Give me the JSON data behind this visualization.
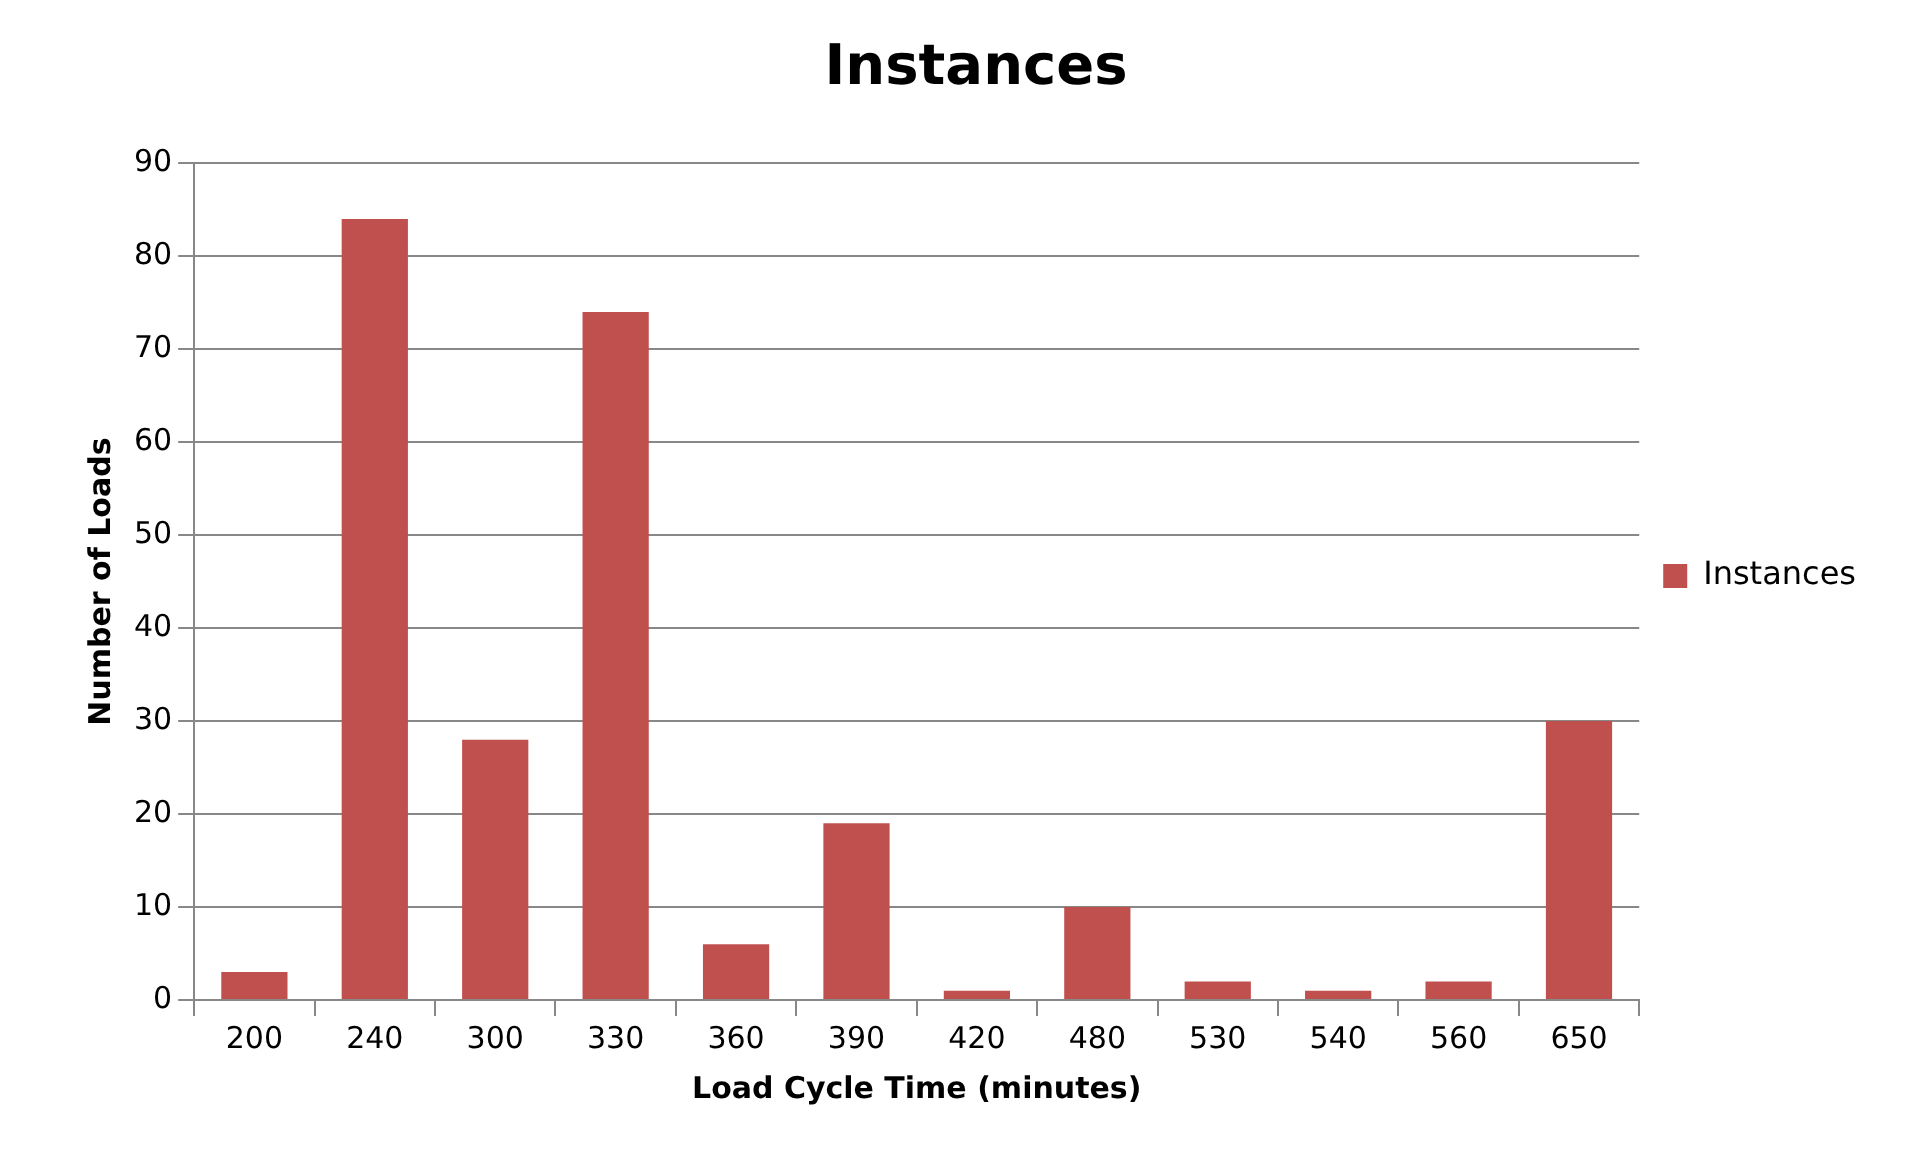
{
  "chart_data": {
    "type": "bar",
    "title": "Instances",
    "xlabel": "Load Cycle Time (minutes)",
    "ylabel": "Number of Loads",
    "categories": [
      "200",
      "240",
      "300",
      "330",
      "360",
      "390",
      "420",
      "480",
      "530",
      "540",
      "560",
      "650"
    ],
    "series": [
      {
        "name": "Instances",
        "color": "#c0504d",
        "values": [
          3,
          84,
          28,
          74,
          6,
          19,
          1,
          10,
          2,
          1,
          2,
          30
        ]
      }
    ],
    "ylim": [
      0,
      90
    ],
    "yticks": [
      0,
      10,
      20,
      30,
      40,
      50,
      60,
      70,
      80,
      90
    ],
    "grid": "y",
    "legend": "right"
  }
}
